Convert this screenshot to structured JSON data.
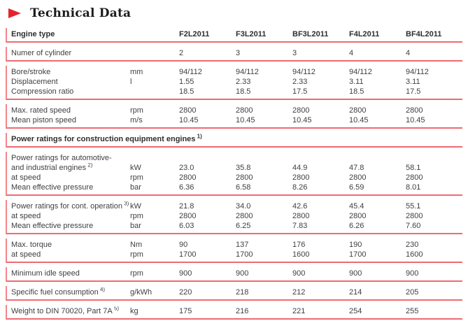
{
  "title": "Technical Data",
  "colors": {
    "accent_red": "#e5232d",
    "rule_red": "#ee6b70",
    "tick_pink": "#f2868a",
    "text": "#3f3f3f"
  },
  "table": {
    "header_label": "Engine type",
    "columns": [
      "F2L2011",
      "F3L2011",
      "BF3L2011",
      "F4L2011",
      "BF4L2011"
    ],
    "groups": [
      {
        "name": "group-engine-type",
        "bold": true,
        "rows": [
          {
            "label": "Engine type",
            "unit": "",
            "values": "@columns"
          }
        ]
      },
      {
        "name": "group-number-of-cylinders",
        "rows": [
          {
            "label": "Numer of cylinder",
            "unit": "",
            "values": [
              "2",
              "3",
              "3",
              "4",
              "4"
            ]
          }
        ]
      },
      {
        "name": "group-bore-displacement-compression",
        "rows": [
          {
            "label": "Bore/stroke",
            "unit": "mm",
            "values": [
              "94/112",
              "94/112",
              "94/112",
              "94/112",
              "94/112"
            ]
          },
          {
            "label": "Displacement",
            "unit": "l",
            "values": [
              "1.55",
              "2.33",
              "2.33",
              "3.11",
              "3.11"
            ]
          },
          {
            "label": "Compression ratio",
            "unit": "",
            "values": [
              "18.5",
              "18.5",
              "17.5",
              "18.5",
              "17.5"
            ]
          }
        ]
      },
      {
        "name": "group-rated-speed",
        "rows": [
          {
            "label": "Max. rated speed",
            "unit": "rpm",
            "values": [
              "2800",
              "2800",
              "2800",
              "2800",
              "2800"
            ]
          },
          {
            "label": "Mean piston speed",
            "unit": "m/s",
            "values": [
              "10.45",
              "10.45",
              "10.45",
              "10.45",
              "10.45"
            ]
          }
        ]
      },
      {
        "name": "group-section-construction-equipment",
        "bold": true,
        "rows": [
          {
            "label": "Power ratings for construction equipment engines",
            "sup": "1)",
            "span": true
          }
        ]
      },
      {
        "name": "group-automotive-industrial-ratings",
        "rows": [
          {
            "label": "Power ratings for automotive-",
            "unit": "",
            "values": [
              "",
              "",
              "",
              "",
              ""
            ]
          },
          {
            "label": "and industrial engines",
            "sup": "2)",
            "unit": "kW",
            "values": [
              "23.0",
              "35.8",
              "44.9",
              "47.8",
              "58.1"
            ]
          },
          {
            "label": "at speed",
            "unit": "rpm",
            "values": [
              "2800",
              "2800",
              "2800",
              "2800",
              "2800"
            ]
          },
          {
            "label": "Mean effective pressure",
            "unit": "bar",
            "values": [
              "6.36",
              "6.58",
              "8.26",
              "6.59",
              "8.01"
            ]
          }
        ]
      },
      {
        "name": "group-continuous-operation-ratings",
        "rows": [
          {
            "label": "Power ratings for cont. operation",
            "sup": "3)",
            "unit": "kW",
            "values": [
              "21.8",
              "34.0",
              "42.6",
              "45.4",
              "55.1"
            ]
          },
          {
            "label": "at speed",
            "unit": "rpm",
            "values": [
              "2800",
              "2800",
              "2800",
              "2800",
              "2800"
            ]
          },
          {
            "label": "Mean effective pressure",
            "unit": "bar",
            "values": [
              "6.03",
              "6.25",
              "7.83",
              "6.26",
              "7.60"
            ]
          }
        ]
      },
      {
        "name": "group-max-torque",
        "rows": [
          {
            "label": "Max. torque",
            "unit": "Nm",
            "values": [
              "90",
              "137",
              "176",
              "190",
              "230"
            ]
          },
          {
            "label": "at speed",
            "unit": "rpm",
            "values": [
              "1700",
              "1700",
              "1600",
              "1700",
              "1600"
            ]
          }
        ]
      },
      {
        "name": "group-idle-speed",
        "rows": [
          {
            "label": "Minimum idle speed",
            "unit": "rpm",
            "values": [
              "900",
              "900",
              "900",
              "900",
              "900"
            ]
          }
        ]
      },
      {
        "name": "group-fuel-consumption",
        "rows": [
          {
            "label": "Specific fuel consumption",
            "sup": "4)",
            "unit": "g/kWh",
            "values": [
              "220",
              "218",
              "212",
              "214",
              "205"
            ]
          }
        ]
      },
      {
        "name": "group-weight",
        "rows": [
          {
            "label": "Weight to DIN 70020, Part 7A",
            "sup": "5)",
            "unit": "kg",
            "values": [
              "175",
              "216",
              "221",
              "254",
              "255"
            ]
          }
        ]
      }
    ]
  }
}
